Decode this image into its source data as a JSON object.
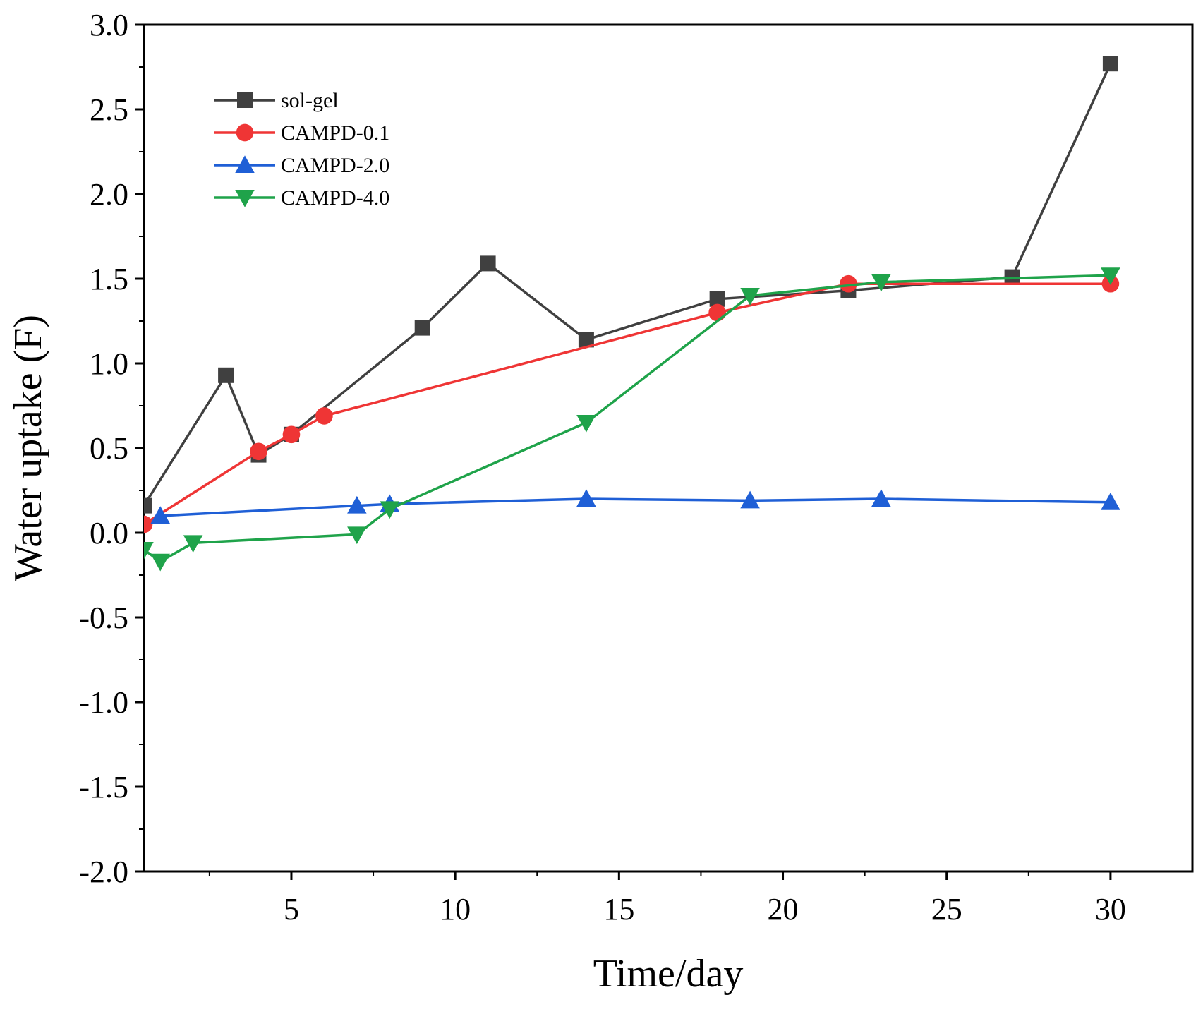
{
  "chart_data": {
    "type": "line",
    "title": "",
    "xlabel": "Time/day",
    "ylabel": "Water uptake (F)",
    "xlim": [
      0.5,
      32.5
    ],
    "ylim": [
      -2.0,
      3.0
    ],
    "x_ticks": [
      5,
      10,
      15,
      20,
      25,
      30
    ],
    "x_tick_labels": [
      "5",
      "10",
      "15",
      "20",
      "25",
      "30"
    ],
    "y_ticks": [
      -2.0,
      -1.5,
      -1.0,
      -0.5,
      0.0,
      0.5,
      1.0,
      1.5,
      2.0,
      2.5,
      3.0
    ],
    "y_tick_labels": [
      "-2.0",
      "-1.5",
      "-1.0",
      "-0.5",
      "0.0",
      "0.5",
      "1.0",
      "1.5",
      "2.0",
      "2.5",
      "3.0"
    ],
    "legend_position": "top-left",
    "series": [
      {
        "name": "sol-gel",
        "color": "#404040",
        "marker": "square",
        "x": [
          0.5,
          3,
          4,
          5,
          9,
          11,
          14,
          18,
          22,
          27,
          30
        ],
        "y": [
          0.16,
          0.93,
          0.46,
          0.58,
          1.21,
          1.59,
          1.14,
          1.38,
          1.43,
          1.51,
          2.77
        ]
      },
      {
        "name": "CAMPD-0.1",
        "color": "#ef3535",
        "marker": "circle",
        "x": [
          0.5,
          4,
          5,
          6,
          18,
          22,
          30
        ],
        "y": [
          0.05,
          0.48,
          0.58,
          0.69,
          1.3,
          1.47,
          1.47
        ]
      },
      {
        "name": "CAMPD-2.0",
        "color": "#1f5fd6",
        "marker": "triangle-up",
        "x": [
          1,
          7,
          8,
          14,
          19,
          23,
          30
        ],
        "y": [
          0.1,
          0.16,
          0.17,
          0.2,
          0.19,
          0.2,
          0.18
        ]
      },
      {
        "name": "CAMPD-4.0",
        "color": "#1fa34a",
        "marker": "triangle-down",
        "x": [
          0.5,
          1,
          2,
          7,
          8,
          14,
          19,
          23,
          30
        ],
        "y": [
          -0.1,
          -0.17,
          -0.06,
          -0.01,
          0.14,
          0.65,
          1.4,
          1.48,
          1.52
        ]
      }
    ]
  }
}
